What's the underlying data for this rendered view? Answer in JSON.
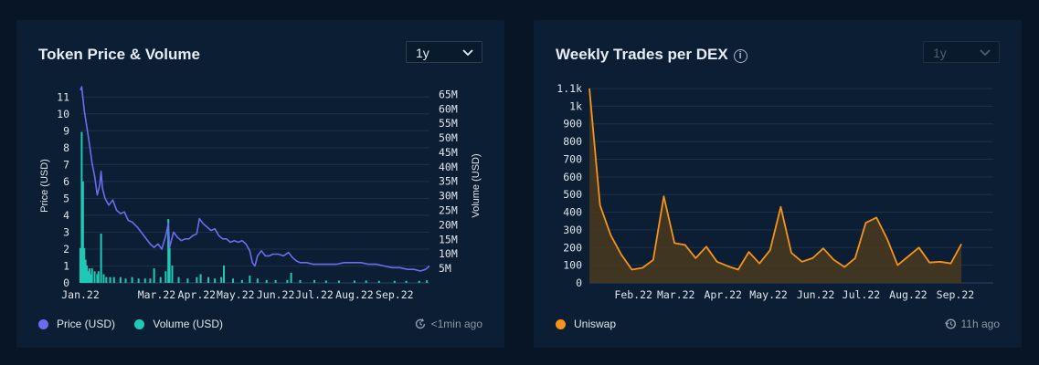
{
  "colors": {
    "price": "#6b6cf0",
    "volume": "#1fc9b6",
    "uniswap": "#f7931a",
    "grid": "#1a3349"
  },
  "left_card": {
    "title": "Token Price & Volume",
    "range": "1y",
    "legend": [
      {
        "label": "Price (USD)",
        "color": "#6b6cf0"
      },
      {
        "label": "Volume (USD)",
        "color": "#1fc9b6"
      }
    ],
    "updated": "<1min ago",
    "icons": {
      "range_chevron": "chevron-down-icon",
      "updated": "refresh-clock-icon"
    }
  },
  "right_card": {
    "title": "Weekly Trades per DEX",
    "range": "1y",
    "range_disabled": true,
    "legend": [
      {
        "label": "Uniswap",
        "color": "#f7931a"
      }
    ],
    "updated": "11h ago",
    "icons": {
      "info": "info-icon",
      "range_chevron": "chevron-down-icon",
      "updated": "history-icon"
    }
  },
  "chart_data": [
    {
      "type": "line",
      "title": "Token Price & Volume",
      "ylabel": "Price (USD)",
      "y2label": "Volume (USD)",
      "ylim": [
        0,
        11.5
      ],
      "y2lim": [
        0,
        67000000
      ],
      "yticks": [
        "0",
        "1",
        "2",
        "3",
        "4",
        "5",
        "6",
        "7",
        "8",
        "9",
        "10",
        "11"
      ],
      "y2ticks": [
        "5M",
        "10M",
        "15M",
        "20M",
        "25M",
        "30M",
        "35M",
        "40M",
        "45M",
        "50M",
        "55M",
        "60M",
        "65M"
      ],
      "xticks": [
        "Jan.22",
        "Mar.22",
        "Apr.22",
        "May.22",
        "Jun.22",
        "Jul.22",
        "Aug.22",
        "Sep.22"
      ],
      "xlim": [
        "2022-01-01",
        "2022-09-28"
      ],
      "grid": true,
      "legend": "bottom-left",
      "series": [
        {
          "name": "Price (USD)",
          "axis": "left",
          "points": [
            [
              "2022-01-01",
              11.4
            ],
            [
              "2022-01-02",
              11.6
            ],
            [
              "2022-01-04",
              10.2
            ],
            [
              "2022-01-06",
              9.2
            ],
            [
              "2022-01-08",
              8.2
            ],
            [
              "2022-01-10",
              7.1
            ],
            [
              "2022-01-12",
              6.3
            ],
            [
              "2022-01-14",
              5.2
            ],
            [
              "2022-01-16",
              5.8
            ],
            [
              "2022-01-17",
              6.6
            ],
            [
              "2022-01-18",
              5.6
            ],
            [
              "2022-01-20",
              5.0
            ],
            [
              "2022-01-23",
              4.6
            ],
            [
              "2022-01-26",
              4.9
            ],
            [
              "2022-01-29",
              4.3
            ],
            [
              "2022-02-01",
              4.1
            ],
            [
              "2022-02-04",
              4.2
            ],
            [
              "2022-02-07",
              3.7
            ],
            [
              "2022-02-10",
              3.6
            ],
            [
              "2022-02-14",
              3.3
            ],
            [
              "2022-02-17",
              3.0
            ],
            [
              "2022-02-20",
              2.7
            ],
            [
              "2022-02-24",
              2.3
            ],
            [
              "2022-02-27",
              2.1
            ],
            [
              "2022-03-02",
              2.3
            ],
            [
              "2022-03-05",
              2.0
            ],
            [
              "2022-03-08",
              2.8
            ],
            [
              "2022-03-10",
              3.5
            ],
            [
              "2022-03-11",
              2.1
            ],
            [
              "2022-03-14",
              3.0
            ],
            [
              "2022-03-17",
              2.7
            ],
            [
              "2022-03-20",
              2.5
            ],
            [
              "2022-03-23",
              2.6
            ],
            [
              "2022-03-26",
              2.6
            ],
            [
              "2022-03-29",
              2.8
            ],
            [
              "2022-04-01",
              2.9
            ],
            [
              "2022-04-03",
              3.8
            ],
            [
              "2022-04-06",
              3.5
            ],
            [
              "2022-04-09",
              3.3
            ],
            [
              "2022-04-12",
              3.1
            ],
            [
              "2022-04-15",
              3.2
            ],
            [
              "2022-04-18",
              2.8
            ],
            [
              "2022-04-21",
              2.6
            ],
            [
              "2022-04-24",
              2.6
            ],
            [
              "2022-04-27",
              2.4
            ],
            [
              "2022-04-30",
              2.5
            ],
            [
              "2022-05-03",
              2.4
            ],
            [
              "2022-05-06",
              2.5
            ],
            [
              "2022-05-09",
              2.3
            ],
            [
              "2022-05-12",
              1.9
            ],
            [
              "2022-05-14",
              1.2
            ],
            [
              "2022-05-16",
              1.0
            ],
            [
              "2022-05-18",
              1.6
            ],
            [
              "2022-05-21",
              1.9
            ],
            [
              "2022-05-24",
              1.6
            ],
            [
              "2022-05-27",
              1.6
            ],
            [
              "2022-05-30",
              1.7
            ],
            [
              "2022-06-03",
              1.7
            ],
            [
              "2022-06-07",
              1.6
            ],
            [
              "2022-06-11",
              1.8
            ],
            [
              "2022-06-14",
              1.5
            ],
            [
              "2022-06-17",
              1.3
            ],
            [
              "2022-06-20",
              1.2
            ],
            [
              "2022-06-25",
              1.2
            ],
            [
              "2022-06-30",
              1.1
            ],
            [
              "2022-07-06",
              1.1
            ],
            [
              "2022-07-12",
              1.1
            ],
            [
              "2022-07-18",
              1.1
            ],
            [
              "2022-07-24",
              1.2
            ],
            [
              "2022-07-30",
              1.2
            ],
            [
              "2022-08-06",
              1.2
            ],
            [
              "2022-08-12",
              1.1
            ],
            [
              "2022-08-18",
              1.1
            ],
            [
              "2022-08-24",
              1.0
            ],
            [
              "2022-08-30",
              0.9
            ],
            [
              "2022-09-05",
              0.9
            ],
            [
              "2022-09-11",
              0.8
            ],
            [
              "2022-09-16",
              0.8
            ],
            [
              "2022-09-21",
              0.7
            ],
            [
              "2022-09-25",
              0.8
            ],
            [
              "2022-09-28",
              1.0
            ]
          ]
        },
        {
          "name": "Volume (USD)",
          "axis": "right",
          "type": "bar",
          "points": [
            [
              "2022-01-01",
              12000000
            ],
            [
              "2022-01-02",
              52000000
            ],
            [
              "2022-01-03",
              35000000
            ],
            [
              "2022-01-04",
              12000000
            ],
            [
              "2022-01-05",
              8000000
            ],
            [
              "2022-01-06",
              6000000
            ],
            [
              "2022-01-07",
              4000000
            ],
            [
              "2022-01-08",
              5000000
            ],
            [
              "2022-01-09",
              3000000
            ],
            [
              "2022-01-10",
              5000000
            ],
            [
              "2022-01-12",
              4000000
            ],
            [
              "2022-01-14",
              3000000
            ],
            [
              "2022-01-15",
              4000000
            ],
            [
              "2022-01-17",
              17000000
            ],
            [
              "2022-01-19",
              3000000
            ],
            [
              "2022-01-21",
              2000000
            ],
            [
              "2022-01-24",
              2000000
            ],
            [
              "2022-01-27",
              2000000
            ],
            [
              "2022-02-01",
              2000000
            ],
            [
              "2022-02-05",
              1500000
            ],
            [
              "2022-02-10",
              2000000
            ],
            [
              "2022-02-15",
              1500000
            ],
            [
              "2022-02-20",
              1500000
            ],
            [
              "2022-02-24",
              1500000
            ],
            [
              "2022-02-27",
              5000000
            ],
            [
              "2022-03-04",
              2000000
            ],
            [
              "2022-03-08",
              4000000
            ],
            [
              "2022-03-10",
              22000000
            ],
            [
              "2022-03-11",
              12000000
            ],
            [
              "2022-03-13",
              6000000
            ],
            [
              "2022-03-18",
              2000000
            ],
            [
              "2022-03-25",
              1500000
            ],
            [
              "2022-04-01",
              2000000
            ],
            [
              "2022-04-04",
              3000000
            ],
            [
              "2022-04-10",
              2000000
            ],
            [
              "2022-04-15",
              1500000
            ],
            [
              "2022-04-20",
              2000000
            ],
            [
              "2022-04-22",
              6000000
            ],
            [
              "2022-04-29",
              1500000
            ],
            [
              "2022-05-06",
              1000000
            ],
            [
              "2022-05-12",
              2500000
            ],
            [
              "2022-05-18",
              1500000
            ],
            [
              "2022-05-25",
              1000000
            ],
            [
              "2022-06-01",
              1000000
            ],
            [
              "2022-06-10",
              1000000
            ],
            [
              "2022-06-13",
              3500000
            ],
            [
              "2022-06-20",
              1000000
            ],
            [
              "2022-07-01",
              1000000
            ],
            [
              "2022-07-10",
              800000
            ],
            [
              "2022-07-20",
              800000
            ],
            [
              "2022-08-01",
              800000
            ],
            [
              "2022-08-10",
              800000
            ],
            [
              "2022-08-20",
              700000
            ],
            [
              "2022-09-01",
              700000
            ],
            [
              "2022-09-10",
              700000
            ],
            [
              "2022-09-20",
              700000
            ],
            [
              "2022-09-26",
              900000
            ]
          ]
        }
      ]
    },
    {
      "type": "area",
      "title": "Weekly Trades per DEX",
      "ylim": [
        0,
        1100
      ],
      "yticks": [
        "0",
        "100",
        "200",
        "300",
        "400",
        "500",
        "600",
        "700",
        "800",
        "900",
        "1k",
        "1.1k"
      ],
      "xticks": [
        "Feb.22",
        "Mar.22",
        "Apr.22",
        "May.22",
        "Jun.22",
        "Jul.22",
        "Aug.22",
        "Sep.22"
      ],
      "xlim": [
        "2022-01-03",
        "2022-09-26"
      ],
      "grid": true,
      "legend": "bottom-left",
      "series": [
        {
          "name": "Uniswap",
          "points": [
            [
              "2022-01-03",
              1100
            ],
            [
              "2022-01-10",
              440
            ],
            [
              "2022-01-17",
              270
            ],
            [
              "2022-01-24",
              160
            ],
            [
              "2022-01-31",
              75
            ],
            [
              "2022-02-07",
              85
            ],
            [
              "2022-02-14",
              130
            ],
            [
              "2022-02-21",
              490
            ],
            [
              "2022-02-28",
              225
            ],
            [
              "2022-03-07",
              215
            ],
            [
              "2022-03-14",
              140
            ],
            [
              "2022-03-21",
              205
            ],
            [
              "2022-03-28",
              120
            ],
            [
              "2022-04-04",
              95
            ],
            [
              "2022-04-11",
              75
            ],
            [
              "2022-04-18",
              175
            ],
            [
              "2022-04-25",
              110
            ],
            [
              "2022-05-02",
              185
            ],
            [
              "2022-05-09",
              430
            ],
            [
              "2022-05-16",
              170
            ],
            [
              "2022-05-23",
              120
            ],
            [
              "2022-05-30",
              140
            ],
            [
              "2022-06-06",
              195
            ],
            [
              "2022-06-13",
              130
            ],
            [
              "2022-06-20",
              90
            ],
            [
              "2022-06-27",
              140
            ],
            [
              "2022-07-04",
              340
            ],
            [
              "2022-07-11",
              370
            ],
            [
              "2022-07-18",
              250
            ],
            [
              "2022-07-25",
              100
            ],
            [
              "2022-08-01",
              150
            ],
            [
              "2022-08-08",
              200
            ],
            [
              "2022-08-15",
              115
            ],
            [
              "2022-08-22",
              120
            ],
            [
              "2022-08-29",
              110
            ],
            [
              "2022-09-05",
              220
            ]
          ]
        }
      ]
    }
  ]
}
